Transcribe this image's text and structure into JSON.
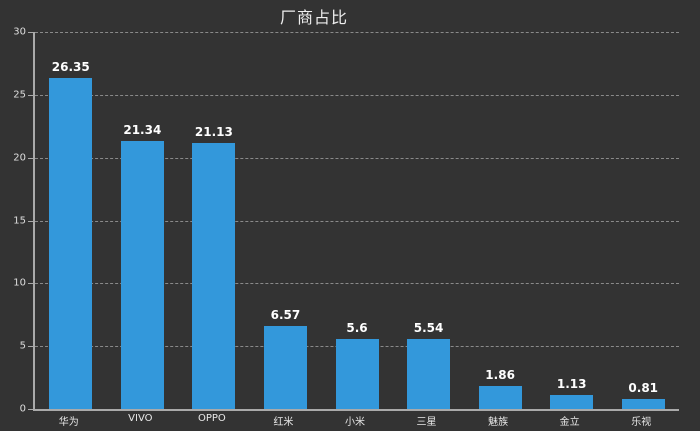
{
  "chart_data": {
    "type": "bar",
    "title": "厂商占比",
    "categories": [
      "华为",
      "VIVO",
      "OPPO",
      "红米",
      "小米",
      "三星",
      "魅族",
      "金立",
      "乐视"
    ],
    "values": [
      26.35,
      21.34,
      21.13,
      6.57,
      5.6,
      5.54,
      1.86,
      1.13,
      0.81
    ],
    "value_labels": [
      "26.35",
      "21.34",
      "21.13",
      "6.57",
      "5.6",
      "5.54",
      "1.86",
      "1.13",
      "0.81"
    ],
    "ylim": [
      0,
      30
    ],
    "yticks": [
      0,
      5,
      10,
      15,
      20,
      25,
      30
    ],
    "ytick_labels": [
      "0",
      "5",
      "10",
      "15",
      "20",
      "25",
      "30"
    ],
    "xlabel": "",
    "ylabel": "",
    "grid": "horizontal-dashed",
    "legend": "none",
    "colors": {
      "background": "#333333",
      "bar": "#3398db",
      "axis_line": "#aaaaaa",
      "gridline": "#8a8a8a",
      "title_text": "#eeeeee",
      "tick_text": "#dddddd",
      "value_text": "#ffffff"
    }
  }
}
